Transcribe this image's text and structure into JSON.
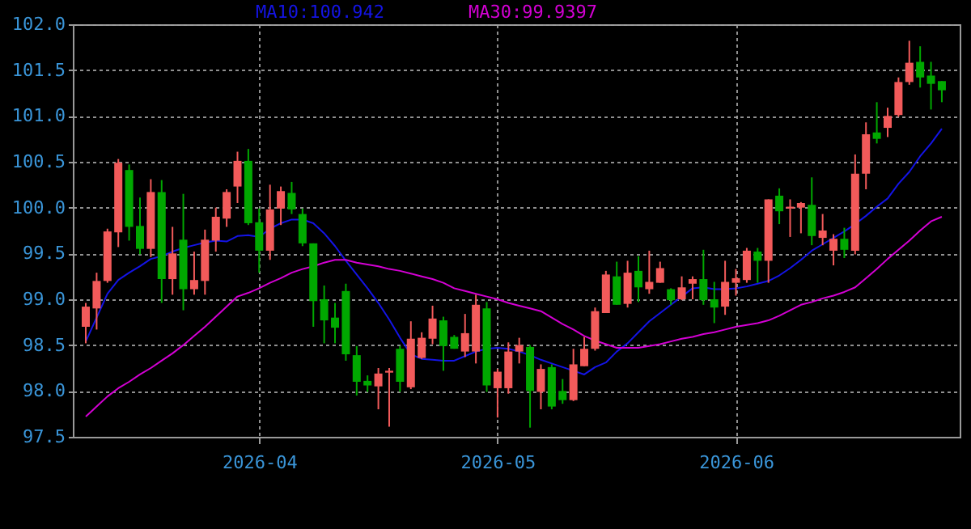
{
  "chart_data": {
    "type": "candlestick",
    "categories": [
      null,
      null,
      null,
      null,
      null,
      null,
      null,
      null,
      null,
      null,
      null,
      null,
      null,
      null,
      null,
      null,
      "2026-04",
      null,
      null,
      null,
      null,
      null,
      null,
      null,
      null,
      null,
      null,
      null,
      null,
      null,
      null,
      null,
      null,
      null,
      null,
      null,
      null,
      null,
      "2026-05",
      null,
      null,
      null,
      null,
      null,
      null,
      null,
      null,
      null,
      null,
      null,
      null,
      null,
      null,
      null,
      null,
      null,
      null,
      null,
      null,
      null,
      "2026-06",
      null,
      null,
      null,
      null,
      null,
      null,
      null,
      null,
      null,
      null,
      null,
      null,
      null,
      null,
      null,
      null,
      null,
      null,
      null
    ],
    "ohlc": [
      [
        98.7,
        98.96,
        98.52,
        98.92
      ],
      [
        98.9,
        99.29,
        98.67,
        99.2
      ],
      [
        99.2,
        99.77,
        99.18,
        99.74
      ],
      [
        99.73,
        100.53,
        99.57,
        100.49
      ],
      [
        100.41,
        100.47,
        99.64,
        99.79
      ],
      [
        99.8,
        100.11,
        99.49,
        99.55
      ],
      [
        99.55,
        100.31,
        99.46,
        100.17
      ],
      [
        100.17,
        100.3,
        98.96,
        99.22
      ],
      [
        99.22,
        99.79,
        99.05,
        99.5
      ],
      [
        99.65,
        100.15,
        98.88,
        99.11
      ],
      [
        99.11,
        99.52,
        99.05,
        99.21
      ],
      [
        99.2,
        99.76,
        99.05,
        99.65
      ],
      [
        99.64,
        100.0,
        99.52,
        99.9
      ],
      [
        99.88,
        100.2,
        99.79,
        100.17
      ],
      [
        100.23,
        100.61,
        100.05,
        100.51
      ],
      [
        100.51,
        100.64,
        99.81,
        99.83
      ],
      [
        99.84,
        99.99,
        99.29,
        99.53
      ],
      [
        99.53,
        100.25,
        99.43,
        99.98
      ],
      [
        99.99,
        100.23,
        99.81,
        100.18
      ],
      [
        100.16,
        100.28,
        99.93,
        99.98
      ],
      [
        99.93,
        99.99,
        99.58,
        99.61
      ],
      [
        99.61,
        99.61,
        98.7,
        98.98
      ],
      [
        99.0,
        99.15,
        98.52,
        98.77
      ],
      [
        98.8,
        98.96,
        98.52,
        98.69
      ],
      [
        99.09,
        99.17,
        98.33,
        98.4
      ],
      [
        98.39,
        98.49,
        97.95,
        98.1
      ],
      [
        98.11,
        98.17,
        97.99,
        98.06
      ],
      [
        98.05,
        98.25,
        97.8,
        98.19
      ],
      [
        98.2,
        98.25,
        97.61,
        98.22
      ],
      [
        98.46,
        98.49,
        97.99,
        98.1
      ],
      [
        98.04,
        98.76,
        98.02,
        98.57
      ],
      [
        98.36,
        98.64,
        98.35,
        98.58
      ],
      [
        98.57,
        98.93,
        98.51,
        98.79
      ],
      [
        98.77,
        98.81,
        98.22,
        98.49
      ],
      [
        98.59,
        98.61,
        98.46,
        98.46
      ],
      [
        98.43,
        98.84,
        98.37,
        98.63
      ],
      [
        98.43,
        99.05,
        98.3,
        98.94
      ],
      [
        98.9,
        98.97,
        97.99,
        98.06
      ],
      [
        98.03,
        98.24,
        97.71,
        98.21
      ],
      [
        98.03,
        98.53,
        97.97,
        98.43
      ],
      [
        98.43,
        98.58,
        98.3,
        98.5
      ],
      [
        98.48,
        98.5,
        97.6,
        98.0
      ],
      [
        97.99,
        98.29,
        97.8,
        98.24
      ],
      [
        98.26,
        98.29,
        97.8,
        97.83
      ],
      [
        98.0,
        98.13,
        97.86,
        97.9
      ],
      [
        97.9,
        98.46,
        97.89,
        98.29
      ],
      [
        98.27,
        98.59,
        98.27,
        98.46
      ],
      [
        98.46,
        98.91,
        98.44,
        98.87
      ],
      [
        98.85,
        99.31,
        98.85,
        99.27
      ],
      [
        99.25,
        99.41,
        98.94,
        98.94
      ],
      [
        98.95,
        99.42,
        98.91,
        99.29
      ],
      [
        99.31,
        99.47,
        98.97,
        99.13
      ],
      [
        99.11,
        99.53,
        99.06,
        99.19
      ],
      [
        99.18,
        99.41,
        99.18,
        99.34
      ],
      [
        99.11,
        99.12,
        98.94,
        98.99
      ],
      [
        99.0,
        99.25,
        98.99,
        99.13
      ],
      [
        99.17,
        99.25,
        99.0,
        99.22
      ],
      [
        99.22,
        99.54,
        98.94,
        98.99
      ],
      [
        99.0,
        99.19,
        98.74,
        98.91
      ],
      [
        98.92,
        99.42,
        98.83,
        99.19
      ],
      [
        99.18,
        99.33,
        99.04,
        99.23
      ],
      [
        99.21,
        99.56,
        99.18,
        99.53
      ],
      [
        99.52,
        99.56,
        99.18,
        99.42
      ],
      [
        99.42,
        100.09,
        99.18,
        100.09
      ],
      [
        100.13,
        100.21,
        99.82,
        99.96
      ],
      [
        99.99,
        100.09,
        99.68,
        100.01
      ],
      [
        100.0,
        100.06,
        99.72,
        100.05
      ],
      [
        100.03,
        100.33,
        99.59,
        99.69
      ],
      [
        99.67,
        99.93,
        99.59,
        99.75
      ],
      [
        99.53,
        99.71,
        99.37,
        99.66
      ],
      [
        99.66,
        99.78,
        99.45,
        99.54
      ],
      [
        99.53,
        100.58,
        99.49,
        100.37
      ],
      [
        100.37,
        100.93,
        100.2,
        100.8
      ],
      [
        100.82,
        101.15,
        100.7,
        100.75
      ],
      [
        100.87,
        101.09,
        100.77,
        101.0
      ],
      [
        101.01,
        101.42,
        100.99,
        101.37
      ],
      [
        101.37,
        101.82,
        101.34,
        101.58
      ],
      [
        101.59,
        101.76,
        101.31,
        101.42
      ],
      [
        101.44,
        101.59,
        101.07,
        101.35
      ],
      [
        101.38,
        101.38,
        101.15,
        101.28
      ]
    ],
    "colors": [
      "#f25a5a",
      "#f25a5a",
      "#f25a5a",
      "#f25a5a",
      "#00a800",
      "#00a800",
      "#f25a5a",
      "#00a800",
      "#f25a5a",
      "#00a800",
      "#f25a5a",
      "#f25a5a",
      "#f25a5a",
      "#f25a5a",
      "#f25a5a",
      "#00a800",
      "#00a800",
      "#f25a5a",
      "#f25a5a",
      "#00a800",
      "#00a800",
      "#00a800",
      "#00a800",
      "#00a800",
      "#00a800",
      "#00a800",
      "#00a800",
      "#f25a5a",
      "#f25a5a",
      "#00a800",
      "#f25a5a",
      "#f25a5a",
      "#f25a5a",
      "#00a800",
      "#00a800",
      "#f25a5a",
      "#f25a5a",
      "#00a800",
      "#f25a5a",
      "#f25a5a",
      "#f25a5a",
      "#00a800",
      "#f25a5a",
      "#00a800",
      "#00a800",
      "#f25a5a",
      "#f25a5a",
      "#f25a5a",
      "#f25a5a",
      "#00a800",
      "#f25a5a",
      "#00a800",
      "#f25a5a",
      "#f25a5a",
      "#00a800",
      "#f25a5a",
      "#f25a5a",
      "#00a800",
      "#00a800",
      "#f25a5a",
      "#f25a5a",
      "#f25a5a",
      "#00a800",
      "#f25a5a",
      "#00a800",
      "#f25a5a",
      "#f25a5a",
      "#00a800",
      "#f25a5a",
      "#f25a5a",
      "#00a800",
      "#f25a5a",
      "#f25a5a",
      "#00a800",
      "#f25a5a",
      "#f25a5a",
      "#f25a5a",
      "#00a800",
      "#00a800",
      "#00a800"
    ],
    "series": [
      {
        "type": "line",
        "name": "MA10:100.942",
        "color": "#1414e6",
        "values": [
          98.54,
          98.8,
          99.06,
          99.21,
          99.29,
          99.36,
          99.44,
          99.47,
          99.52,
          99.56,
          99.59,
          99.62,
          99.64,
          99.63,
          99.69,
          99.7,
          99.68,
          99.77,
          99.83,
          99.87,
          99.87,
          99.83,
          99.72,
          99.58,
          99.42,
          99.27,
          99.12,
          98.96,
          98.78,
          98.58,
          98.4,
          98.35,
          98.34,
          98.33,
          98.33,
          98.38,
          98.43,
          98.46,
          98.47,
          98.46,
          98.43,
          98.39,
          98.34,
          98.3,
          98.26,
          98.22,
          98.18,
          98.26,
          98.31,
          98.43,
          98.52,
          98.64,
          98.76,
          98.85,
          98.94,
          99.03,
          99.12,
          99.13,
          99.11,
          99.11,
          99.12,
          99.14,
          99.17,
          99.2,
          99.26,
          99.34,
          99.43,
          99.53,
          99.6,
          99.67,
          99.74,
          99.82,
          99.91,
          100.01,
          100.1,
          100.26,
          100.39,
          100.56,
          100.7,
          100.86
        ]
      },
      {
        "type": "line",
        "name": "MA30:99.9397",
        "color": "#d400d4",
        "values": [
          97.72,
          97.83,
          97.94,
          98.03,
          98.1,
          98.18,
          98.25,
          98.33,
          98.41,
          98.5,
          98.6,
          98.7,
          98.81,
          98.92,
          99.03,
          99.07,
          99.12,
          99.18,
          99.23,
          99.29,
          99.33,
          99.36,
          99.4,
          99.43,
          99.43,
          99.4,
          99.38,
          99.36,
          99.33,
          99.31,
          99.28,
          99.25,
          99.22,
          99.18,
          99.12,
          99.09,
          99.06,
          99.03,
          99.0,
          98.96,
          98.93,
          98.9,
          98.87,
          98.8,
          98.73,
          98.67,
          98.6,
          98.55,
          98.51,
          98.47,
          98.47,
          98.47,
          98.49,
          98.51,
          98.54,
          98.57,
          98.59,
          98.62,
          98.64,
          98.67,
          98.7,
          98.72,
          98.74,
          98.77,
          98.82,
          98.88,
          98.94,
          98.97,
          99.01,
          99.04,
          99.08,
          99.13,
          99.23,
          99.33,
          99.44,
          99.54,
          99.64,
          99.75,
          99.85,
          99.9
        ]
      }
    ],
    "ylim": [
      97.5,
      102.0
    ],
    "yticks": [
      {
        "value": 97.5,
        "label": "97.5"
      },
      {
        "value": 98,
        "label": "98.0"
      },
      {
        "value": 98.5,
        "label": "98.5"
      },
      {
        "value": 99,
        "label": "99.0"
      },
      {
        "value": 99.5,
        "label": "99.5"
      },
      {
        "value": 100,
        "label": "100.0"
      },
      {
        "value": 100.5,
        "label": "100.5"
      },
      {
        "value": 101,
        "label": "101.0"
      },
      {
        "value": 101.5,
        "label": "101.5"
      },
      {
        "value": 102,
        "label": "102.0"
      }
    ],
    "grid": true,
    "legend": "top"
  }
}
